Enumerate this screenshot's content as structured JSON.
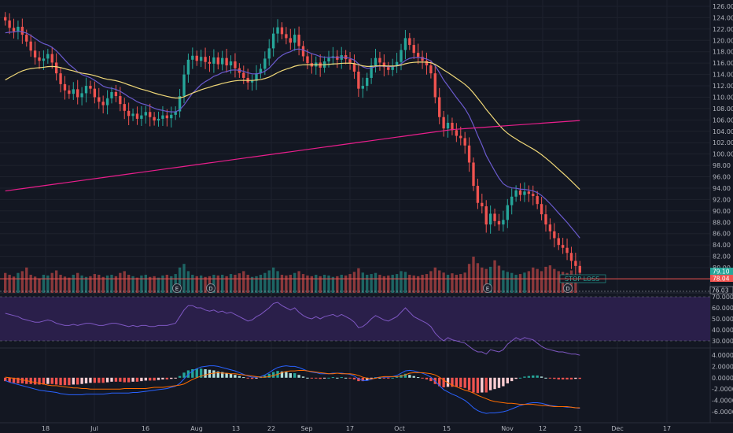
{
  "colors": {
    "background": "#131722",
    "grid": "#1e222d",
    "up": "#26a69a",
    "down": "#ef5350",
    "ema_fast": "#6a5acd",
    "ema_mid": "#f0d878",
    "sma_long": "#e91e8c",
    "rsi_band": "#2a1f4a",
    "rsi_line": "#7e57c2",
    "macd_line": "#2962ff",
    "signal_line": "#ff6d00",
    "hist_pos_strong": "#26a69a",
    "hist_pos_weak": "#b2dfdb",
    "hist_neg_strong": "#ef5350",
    "hist_neg_weak": "#ffcdd2",
    "stop_loss": "#ef5350",
    "price_label": "#26a69a"
  },
  "price_axis": {
    "ticks": [
      "126.00",
      "124.00",
      "122.00",
      "120.00",
      "118.00",
      "116.00",
      "114.00",
      "112.00",
      "110.00",
      "108.00",
      "106.00",
      "104.00",
      "102.00",
      "100.00",
      "98.00",
      "96.00",
      "94.00",
      "92.00",
      "90.00",
      "88.00",
      "86.00",
      "84.00",
      "82.00",
      "80.00"
    ],
    "last_price_label": "79.10",
    "stop_loss_price_label": "78.04",
    "lower_price_label": "76.03"
  },
  "stop_loss": {
    "label": "STOP LOSS",
    "price": 78.04
  },
  "rsi_axis": {
    "ticks": [
      "70.0000",
      "60.0000",
      "50.0000",
      "40.0000",
      "30.0000"
    ]
  },
  "macd_axis": {
    "ticks": [
      "4.0000",
      "2.0000",
      "0.0000",
      "-2.0000",
      "-4.0000",
      "-6.0000"
    ]
  },
  "time_axis": {
    "labels": [
      "18",
      "Jul",
      "16",
      "Aug",
      "13",
      "22",
      "Sep",
      "17",
      "Oct",
      "15",
      "Nov",
      "12",
      "21",
      "Dec",
      "17"
    ]
  },
  "event_markers": [
    {
      "letter": "E",
      "kind": "earnings"
    },
    {
      "letter": "D",
      "kind": "dividend"
    },
    {
      "letter": "E",
      "kind": "earnings"
    },
    {
      "letter": "D",
      "kind": "dividend"
    }
  ],
  "chart_data": {
    "type": "candlestick",
    "price_range": [
      76,
      127
    ],
    "candles_close": [
      123.5,
      122.2,
      121.6,
      122.4,
      121.0,
      119.8,
      118.2,
      117.0,
      116.4,
      116.8,
      117.6,
      116.1,
      114.2,
      112.3,
      111.2,
      110.6,
      111.4,
      110.0,
      110.7,
      112.0,
      111.5,
      110.0,
      109.2,
      108.6,
      109.8,
      110.9,
      110.2,
      108.8,
      107.6,
      106.7,
      107.1,
      106.2,
      106.8,
      107.4,
      106.5,
      105.9,
      106.2,
      106.8,
      106.3,
      106.9,
      107.5,
      110.2,
      114.0,
      116.6,
      117.3,
      116.4,
      117.1,
      116.2,
      115.9,
      117.0,
      115.8,
      116.9,
      115.6,
      116.3,
      115.1,
      114.3,
      113.4,
      112.6,
      112.9,
      114.2,
      115.0,
      116.8,
      118.6,
      121.2,
      122.3,
      121.1,
      120.4,
      119.6,
      121.0,
      119.0,
      117.2,
      116.0,
      115.4,
      116.1,
      115.2,
      116.3,
      116.9,
      117.2,
      116.6,
      117.4,
      116.7,
      115.9,
      114.5,
      111.5,
      112.0,
      113.4,
      115.6,
      116.9,
      116.1,
      115.3,
      114.8,
      115.5,
      116.2,
      118.3,
      120.4,
      119.2,
      117.8,
      117.1,
      116.4,
      115.6,
      114.2,
      110.0,
      106.5,
      104.5,
      105.5,
      104.2,
      103.2,
      102.8,
      101.5,
      98.5,
      94.4,
      91.4,
      90.8,
      87.6,
      89.5,
      88.2,
      87.6,
      88.4,
      91.0,
      92.5,
      93.6,
      92.8,
      93.4,
      93.0,
      92.6,
      91.2,
      89.4,
      87.6,
      86.4,
      85.2,
      84.0,
      83.5,
      82.6,
      81.2,
      80.3,
      79.1
    ],
    "volume": [
      0.55,
      0.5,
      0.45,
      0.55,
      0.6,
      0.7,
      0.5,
      0.45,
      0.4,
      0.5,
      0.48,
      0.55,
      0.62,
      0.5,
      0.45,
      0.42,
      0.5,
      0.55,
      0.48,
      0.44,
      0.46,
      0.52,
      0.5,
      0.44,
      0.48,
      0.5,
      0.46,
      0.55,
      0.6,
      0.5,
      0.46,
      0.42,
      0.48,
      0.5,
      0.44,
      0.46,
      0.42,
      0.48,
      0.5,
      0.46,
      0.52,
      0.7,
      0.8,
      0.6,
      0.5,
      0.46,
      0.48,
      0.44,
      0.46,
      0.5,
      0.48,
      0.5,
      0.46,
      0.52,
      0.5,
      0.54,
      0.6,
      0.5,
      0.44,
      0.46,
      0.5,
      0.55,
      0.62,
      0.7,
      0.6,
      0.5,
      0.48,
      0.5,
      0.55,
      0.6,
      0.52,
      0.48,
      0.46,
      0.5,
      0.46,
      0.5,
      0.48,
      0.44,
      0.46,
      0.5,
      0.48,
      0.52,
      0.58,
      0.68,
      0.56,
      0.5,
      0.52,
      0.55,
      0.5,
      0.46,
      0.48,
      0.5,
      0.52,
      0.6,
      0.58,
      0.5,
      0.48,
      0.46,
      0.5,
      0.52,
      0.6,
      0.7,
      0.62,
      0.56,
      0.5,
      0.54,
      0.5,
      0.52,
      0.56,
      0.8,
      1.0,
      0.82,
      0.7,
      0.66,
      0.72,
      0.9,
      0.75,
      0.62,
      0.58,
      0.55,
      0.5,
      0.52,
      0.56,
      0.6,
      0.7,
      0.66,
      0.6,
      0.72,
      0.76,
      0.66,
      0.6,
      0.58,
      0.55,
      0.62,
      0.5
    ],
    "rsi": [
      55,
      54,
      53,
      52,
      50,
      49,
      48,
      47,
      47,
      48,
      49,
      48,
      46,
      45,
      44,
      44,
      45,
      44,
      45,
      46,
      46,
      45,
      44,
      44,
      45,
      46,
      46,
      45,
      44,
      43,
      44,
      43,
      44,
      44,
      43,
      43,
      44,
      44,
      44,
      45,
      46,
      52,
      58,
      62,
      62,
      60,
      60,
      58,
      57,
      58,
      56,
      57,
      55,
      56,
      54,
      52,
      50,
      48,
      49,
      52,
      54,
      57,
      60,
      64,
      65,
      62,
      60,
      58,
      60,
      56,
      53,
      51,
      50,
      52,
      50,
      52,
      53,
      54,
      52,
      54,
      52,
      50,
      47,
      42,
      43,
      46,
      50,
      53,
      51,
      49,
      48,
      50,
      52,
      56,
      60,
      56,
      52,
      50,
      48,
      46,
      43,
      37,
      33,
      30,
      33,
      31,
      30,
      29,
      28,
      25,
      22,
      20,
      20,
      18,
      22,
      21,
      20,
      22,
      27,
      30,
      33,
      31,
      33,
      32,
      31,
      28,
      25,
      23,
      22,
      21,
      20,
      20,
      19,
      18,
      18,
      17
    ],
    "macd_hist": [
      -0.6,
      -0.8,
      -0.9,
      -1.0,
      -1.0,
      -1.1,
      -1.1,
      -1.2,
      -1.2,
      -1.2,
      -1.1,
      -1.1,
      -1.2,
      -1.3,
      -1.3,
      -1.3,
      -1.2,
      -1.2,
      -1.1,
      -1.0,
      -0.9,
      -0.9,
      -0.9,
      -0.9,
      -0.8,
      -0.7,
      -0.7,
      -0.7,
      -0.8,
      -0.8,
      -0.7,
      -0.7,
      -0.6,
      -0.5,
      -0.5,
      -0.5,
      -0.4,
      -0.3,
      -0.3,
      -0.2,
      -0.1,
      0.3,
      0.9,
      1.3,
      1.5,
      1.6,
      1.6,
      1.5,
      1.4,
      1.3,
      1.1,
      1.0,
      0.8,
      0.7,
      0.5,
      0.3,
      0.1,
      -0.1,
      -0.2,
      -0.1,
      0.1,
      0.4,
      0.7,
      1.0,
      1.2,
      1.1,
      1.0,
      0.8,
      0.8,
      0.5,
      0.2,
      0.0,
      -0.1,
      -0.1,
      -0.2,
      -0.1,
      0.0,
      0.1,
      0.0,
      0.1,
      0.0,
      -0.1,
      -0.3,
      -0.6,
      -0.6,
      -0.4,
      -0.1,
      0.1,
      0.0,
      -0.1,
      -0.1,
      0.0,
      0.2,
      0.5,
      0.7,
      0.5,
      0.3,
      0.1,
      -0.1,
      -0.3,
      -0.6,
      -1.1,
      -1.5,
      -1.7,
      -1.6,
      -1.6,
      -1.6,
      -1.7,
      -1.8,
      -2.2,
      -2.6,
      -2.7,
      -2.6,
      -2.6,
      -2.2,
      -2.0,
      -1.8,
      -1.5,
      -1.0,
      -0.6,
      -0.2,
      0.0,
      0.2,
      0.3,
      0.4,
      0.4,
      0.2,
      0.0,
      -0.1,
      -0.2,
      -0.3,
      -0.3,
      -0.3,
      -0.3,
      -0.2,
      -0.2
    ],
    "macd_line": [
      -0.5,
      -0.8,
      -1.0,
      -1.2,
      -1.4,
      -1.6,
      -1.8,
      -2.0,
      -2.2,
      -2.3,
      -2.4,
      -2.5,
      -2.6,
      -2.8,
      -2.9,
      -3.0,
      -3.0,
      -3.0,
      -3.0,
      -2.9,
      -2.9,
      -2.9,
      -2.9,
      -2.9,
      -2.8,
      -2.7,
      -2.7,
      -2.7,
      -2.7,
      -2.7,
      -2.6,
      -2.6,
      -2.5,
      -2.4,
      -2.3,
      -2.2,
      -2.1,
      -2.0,
      -1.9,
      -1.7,
      -1.5,
      -1.0,
      -0.2,
      0.6,
      1.2,
      1.6,
      1.9,
      2.0,
      2.1,
      2.1,
      2.0,
      1.8,
      1.6,
      1.4,
      1.2,
      0.9,
      0.6,
      0.3,
      0.1,
      0.1,
      0.2,
      0.5,
      0.9,
      1.4,
      1.8,
      2.0,
      2.1,
      2.0,
      2.0,
      1.8,
      1.5,
      1.2,
      1.0,
      0.9,
      0.7,
      0.7,
      0.7,
      0.8,
      0.8,
      0.8,
      0.7,
      0.6,
      0.3,
      -0.2,
      -0.5,
      -0.5,
      -0.3,
      0.0,
      0.1,
      0.1,
      0.1,
      0.2,
      0.4,
      0.8,
      1.2,
      1.3,
      1.2,
      1.0,
      0.8,
      0.5,
      0.1,
      -0.6,
      -1.4,
      -2.1,
      -2.5,
      -2.9,
      -3.2,
      -3.6,
      -4.0,
      -4.6,
      -5.3,
      -5.8,
      -6.1,
      -6.3,
      -6.2,
      -6.2,
      -6.1,
      -6.0,
      -5.8,
      -5.5,
      -5.2,
      -4.9,
      -4.7,
      -4.5,
      -4.4,
      -4.4,
      -4.5,
      -4.7,
      -4.9,
      -5.0,
      -5.1,
      -5.1,
      -5.2,
      -5.2,
      -5.3,
      -5.4
    ],
    "signal_line": [
      0.1,
      0.0,
      -0.1,
      -0.2,
      -0.4,
      -0.5,
      -0.7,
      -0.8,
      -1.0,
      -1.1,
      -1.3,
      -1.4,
      -1.4,
      -1.5,
      -1.6,
      -1.7,
      -1.8,
      -1.8,
      -1.9,
      -1.9,
      -2.0,
      -2.0,
      -2.0,
      -2.0,
      -2.0,
      -2.0,
      -2.0,
      -2.0,
      -1.9,
      -1.9,
      -1.9,
      -1.9,
      -1.9,
      -1.9,
      -1.8,
      -1.7,
      -1.7,
      -1.7,
      -1.6,
      -1.5,
      -1.4,
      -1.3,
      -1.1,
      -0.7,
      -0.3,
      0.0,
      0.3,
      0.5,
      0.7,
      0.8,
      0.9,
      0.8,
      0.8,
      0.7,
      0.7,
      0.6,
      0.5,
      0.4,
      0.3,
      0.2,
      0.1,
      0.1,
      0.2,
      0.4,
      0.6,
      0.9,
      1.1,
      1.2,
      1.2,
      1.3,
      1.3,
      1.2,
      1.1,
      1.0,
      0.9,
      0.8,
      0.7,
      0.7,
      0.8,
      0.7,
      0.7,
      0.7,
      0.6,
      0.4,
      0.1,
      -0.1,
      -0.2,
      -0.1,
      0.1,
      0.2,
      0.2,
      0.2,
      0.2,
      0.3,
      0.5,
      0.8,
      0.9,
      0.9,
      0.9,
      0.8,
      0.7,
      0.5,
      0.1,
      -0.4,
      -0.9,
      -1.3,
      -1.6,
      -1.9,
      -2.2,
      -2.4,
      -2.7,
      -3.1,
      -3.4,
      -3.7,
      -4.0,
      -4.2,
      -4.3,
      -4.4,
      -4.5,
      -4.5,
      -4.6,
      -4.7,
      -4.7,
      -4.7,
      -4.7,
      -4.8,
      -4.9,
      -4.9,
      -5.0,
      -5.1,
      -5.1,
      -5.1,
      -5.1,
      -5.2,
      -5.3,
      -5.3
    ],
    "x_labels": [
      "18",
      "Jul",
      "16",
      "Aug",
      "13",
      "22",
      "Sep",
      "17",
      "Oct",
      "15",
      "Nov",
      "12",
      "21",
      "Dec",
      "17"
    ]
  }
}
